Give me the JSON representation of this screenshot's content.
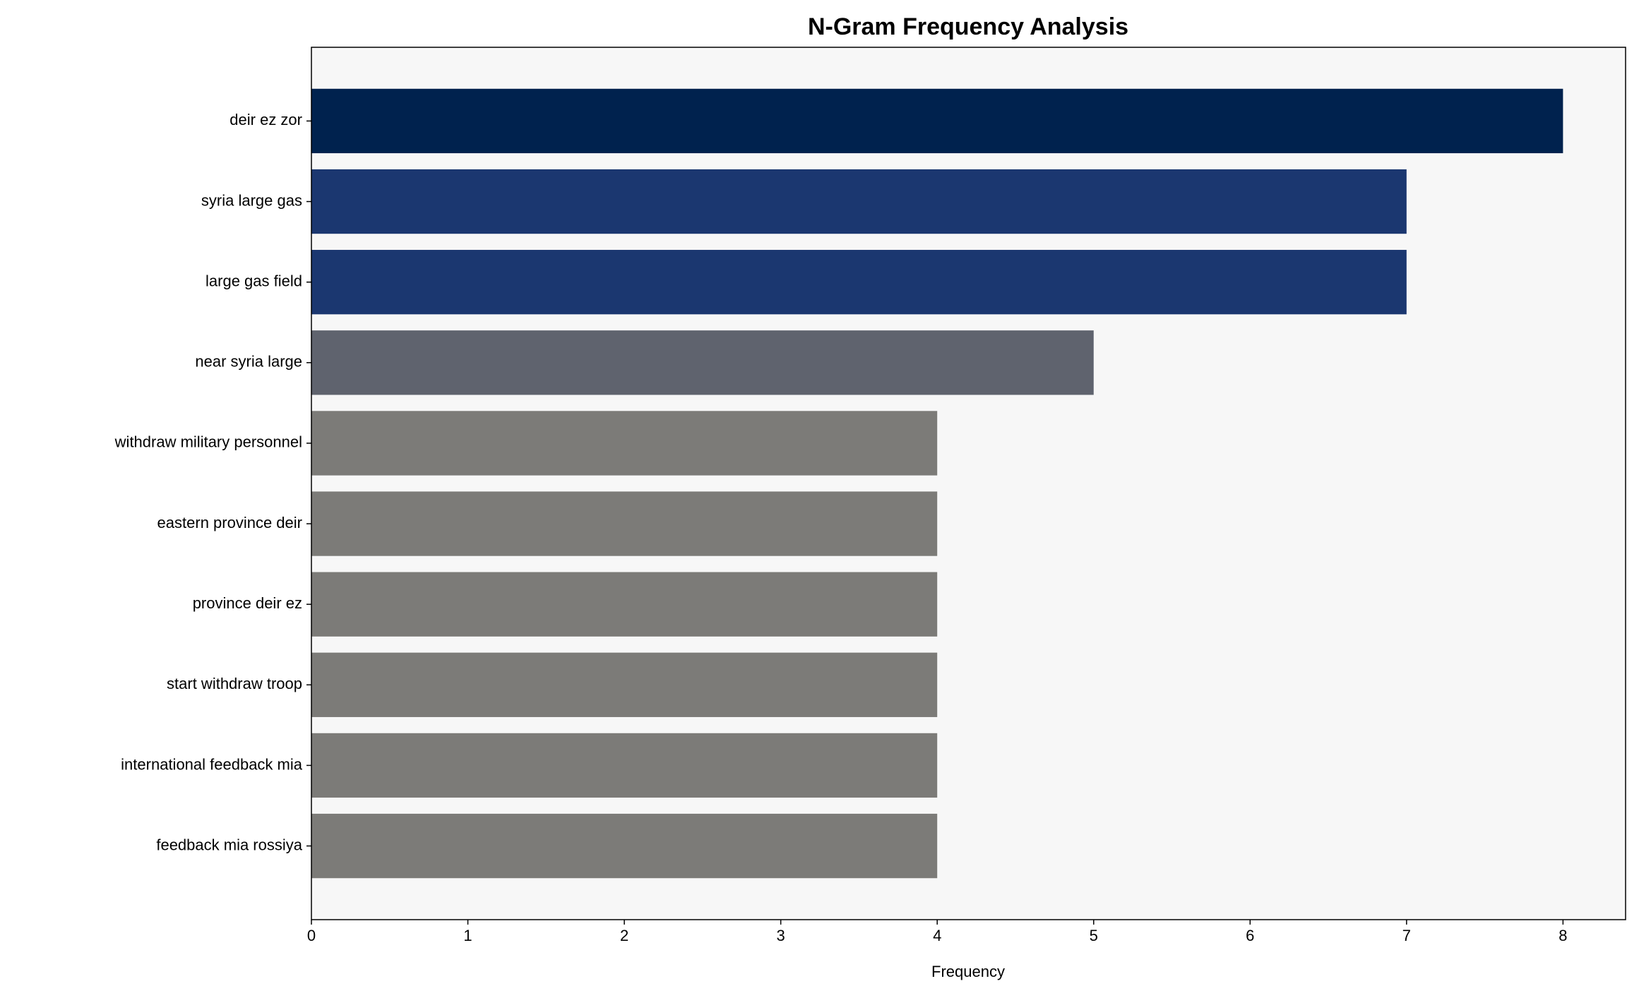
{
  "chart_data": {
    "type": "barh",
    "title": "N-Gram Frequency Analysis",
    "x_label": "Frequency",
    "categories": [
      "deir ez zor",
      "syria large gas",
      "large gas field",
      "near syria large",
      "withdraw military personnel",
      "eastern province deir",
      "province deir ez",
      "start withdraw troop",
      "international feedback mia",
      "feedback mia rossiya"
    ],
    "values": [
      8,
      7,
      7,
      5,
      4,
      4,
      4,
      4,
      4,
      4
    ],
    "colors": [
      "#00224e",
      "#1b3770",
      "#1b3770",
      "#5f636e",
      "#7c7b78",
      "#7c7b78",
      "#7c7b78",
      "#7c7b78",
      "#7c7b78",
      "#7c7b78"
    ],
    "xlim": [
      0,
      8.4
    ],
    "xticks": [
      0,
      1,
      2,
      3,
      4,
      5,
      6,
      7,
      8
    ],
    "grid": false
  }
}
